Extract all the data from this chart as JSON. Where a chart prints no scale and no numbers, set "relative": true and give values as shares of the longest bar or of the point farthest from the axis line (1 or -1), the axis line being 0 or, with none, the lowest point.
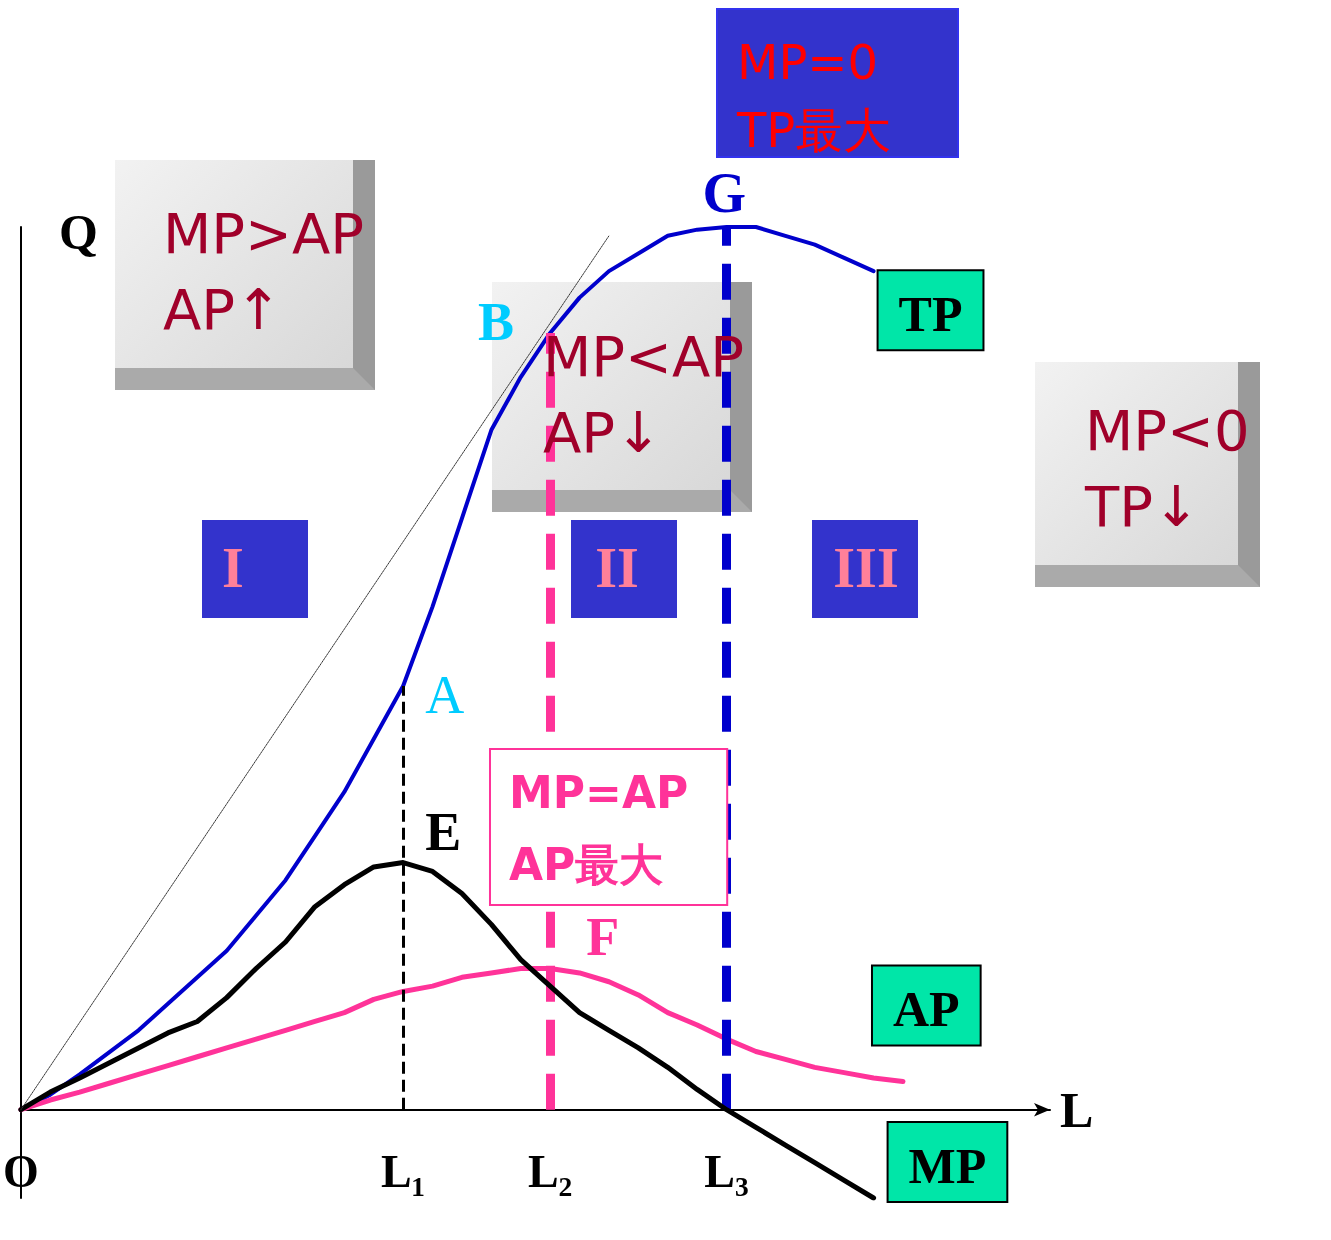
{
  "chart_data": {
    "type": "line",
    "relative": true,
    "xlabel": "L",
    "ylabel": "Q",
    "legend": false,
    "grid": false,
    "marker": "none",
    "categories": [
      "O",
      null,
      null,
      null,
      null,
      null,
      null,
      null,
      null,
      null,
      null,
      null,
      null,
      "L₁",
      null,
      null,
      null,
      null,
      "L₂",
      null,
      null,
      null,
      null,
      null,
      "L₃",
      null,
      null,
      null,
      null,
      null,
      null,
      null,
      null,
      null,
      null,
      null
    ],
    "series": [
      {
        "name": "TP",
        "color": "#0000cc",
        "line_style": "solid",
        "values": [
          0,
          0.017,
          0.04,
          0.065,
          0.09,
          0.12,
          0.15,
          0.18,
          0.22,
          0.26,
          0.31,
          0.36,
          0.42,
          0.48,
          0.57,
          0.67,
          0.77,
          0.83,
          0.88,
          0.92,
          0.95,
          0.97,
          0.99,
          0.997,
          1,
          1,
          0.99,
          0.98,
          0.965,
          0.95,
          null,
          null,
          null,
          null,
          null,
          null
        ]
      },
      {
        "name": "AP",
        "color": "#ff3399",
        "line_style": "solid",
        "values": [
          0,
          0.011,
          0.02,
          0.03,
          0.04,
          0.05,
          0.06,
          0.07,
          0.08,
          0.09,
          0.1,
          0.11,
          0.125,
          0.134,
          0.14,
          0.15,
          0.155,
          0.16,
          0.16,
          0.155,
          0.145,
          0.13,
          0.11,
          0.096,
          0.08,
          0.066,
          0.057,
          0.048,
          0.042,
          0.036,
          0.032,
          null,
          null,
          null,
          null,
          null
        ]
      },
      {
        "name": "MP",
        "color": "#000000",
        "line_style": "solid",
        "values": [
          0,
          0.02,
          0.036,
          0.053,
          0.07,
          0.087,
          0.1,
          0.127,
          0.16,
          0.19,
          0.23,
          0.255,
          0.275,
          0.28,
          0.27,
          0.245,
          0.21,
          0.17,
          0.14,
          0.11,
          0.09,
          0.07,
          0.048,
          0.023,
          0,
          -0.02,
          -0.04,
          -0.06,
          -0.08,
          -0.1,
          null,
          null,
          null,
          null,
          null,
          null
        ]
      },
      {
        "color": "#333333",
        "line_style": "dotted",
        "values": [
          0,
          null,
          null,
          null,
          null,
          null,
          null,
          null,
          null,
          null,
          null,
          null,
          null,
          null,
          null,
          null,
          null,
          null,
          null,
          null,
          0.99,
          null,
          null,
          null,
          null,
          null,
          null,
          null,
          null,
          null,
          null,
          null,
          null,
          null,
          null,
          null
        ]
      }
    ],
    "ref_lines": [
      {
        "axis": "x",
        "value": "L₁",
        "color": "#000000",
        "line_style": "dashed"
      },
      {
        "axis": "x",
        "value": "L₂",
        "color": "#ff3399",
        "line_style": "dashed"
      },
      {
        "axis": "x",
        "value": "L₃",
        "color": "#0000cc",
        "line_style": "dashed"
      }
    ],
    "annotations": [
      "MP>AP\nAP↑",
      "MP<AP\nAP↓",
      "MP<0\nTP↓",
      "MP=0\nTP最大",
      "MP=AP\nAP最大",
      "I",
      "II",
      "III",
      {
        "text": "G",
        "x": "L₃",
        "y": 1
      },
      "B",
      {
        "text": "A",
        "x": "L₁",
        "y": 0.48
      },
      {
        "text": "E",
        "x": "L₁",
        "y": 0.28
      },
      {
        "text": "F",
        "x": "L₂",
        "y": 0.16
      }
    ]
  }
}
